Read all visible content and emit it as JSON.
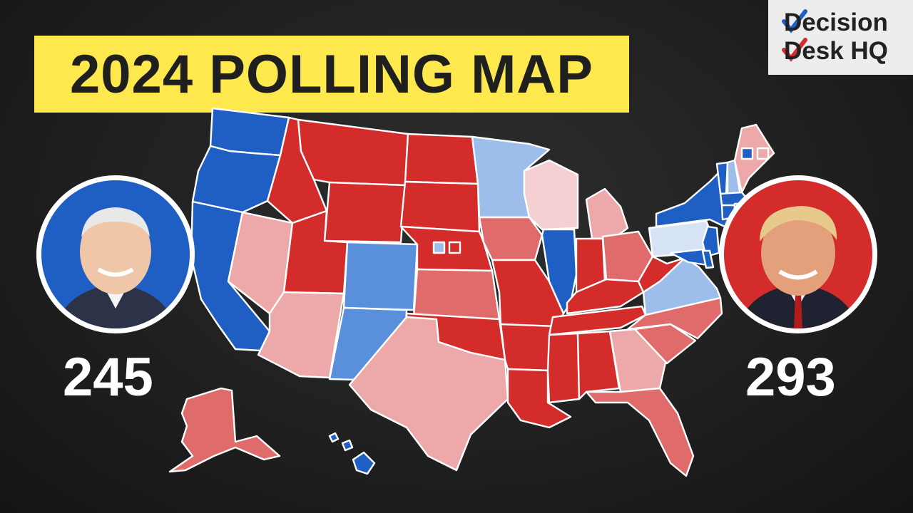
{
  "title": "2024 POLLING MAP",
  "logo": {
    "line1": "Decision",
    "line2": "Desk HQ"
  },
  "candidates": {
    "left": {
      "electoral_votes": "245",
      "photo_bg": "#1f5fc4"
    },
    "right": {
      "electoral_votes": "293",
      "photo_bg": "#d42b2b"
    }
  },
  "colors": {
    "safe_d": "#1f5fc4",
    "likely_d": "#5a8fdc",
    "lean_d": "#9dbdea",
    "tilt_d": "#d5e3f5",
    "tilt_r": "#f5d0d2",
    "lean_r": "#eda8aa",
    "likely_r": "#e06b6b",
    "safe_r": "#d42b2b"
  },
  "states": [
    {
      "id": "WA",
      "rating": "safe_d"
    },
    {
      "id": "OR",
      "rating": "safe_d"
    },
    {
      "id": "CA",
      "rating": "safe_d"
    },
    {
      "id": "NV",
      "rating": "lean_r"
    },
    {
      "id": "ID",
      "rating": "safe_r"
    },
    {
      "id": "MT",
      "rating": "safe_r"
    },
    {
      "id": "WY",
      "rating": "safe_r"
    },
    {
      "id": "UT",
      "rating": "safe_r"
    },
    {
      "id": "AZ",
      "rating": "lean_r"
    },
    {
      "id": "CO",
      "rating": "likely_d"
    },
    {
      "id": "NM",
      "rating": "likely_d"
    },
    {
      "id": "ND",
      "rating": "safe_r"
    },
    {
      "id": "SD",
      "rating": "safe_r"
    },
    {
      "id": "NE",
      "rating": "safe_r"
    },
    {
      "id": "KS",
      "rating": "likely_r"
    },
    {
      "id": "OK",
      "rating": "safe_r"
    },
    {
      "id": "TX",
      "rating": "lean_r"
    },
    {
      "id": "MN",
      "rating": "lean_d"
    },
    {
      "id": "IA",
      "rating": "likely_r"
    },
    {
      "id": "MO",
      "rating": "safe_r"
    },
    {
      "id": "AR",
      "rating": "safe_r"
    },
    {
      "id": "LA",
      "rating": "safe_r"
    },
    {
      "id": "WI",
      "rating": "tilt_r"
    },
    {
      "id": "IL",
      "rating": "safe_d"
    },
    {
      "id": "MI",
      "rating": "lean_r"
    },
    {
      "id": "IN",
      "rating": "safe_r"
    },
    {
      "id": "OH",
      "rating": "likely_r"
    },
    {
      "id": "KY",
      "rating": "safe_r"
    },
    {
      "id": "TN",
      "rating": "safe_r"
    },
    {
      "id": "MS",
      "rating": "safe_r"
    },
    {
      "id": "AL",
      "rating": "safe_r"
    },
    {
      "id": "GA",
      "rating": "lean_r"
    },
    {
      "id": "FL",
      "rating": "likely_r"
    },
    {
      "id": "SC",
      "rating": "likely_r"
    },
    {
      "id": "NC",
      "rating": "likely_r"
    },
    {
      "id": "VA",
      "rating": "lean_d"
    },
    {
      "id": "WV",
      "rating": "safe_r"
    },
    {
      "id": "PA",
      "rating": "tilt_d"
    },
    {
      "id": "NY",
      "rating": "safe_d"
    },
    {
      "id": "NJ",
      "rating": "safe_d"
    },
    {
      "id": "MD",
      "rating": "safe_d"
    },
    {
      "id": "DE",
      "rating": "safe_d"
    },
    {
      "id": "VT",
      "rating": "safe_d"
    },
    {
      "id": "NH",
      "rating": "lean_d"
    },
    {
      "id": "ME",
      "rating": "lean_r"
    },
    {
      "id": "MA",
      "rating": "safe_d"
    },
    {
      "id": "CT",
      "rating": "safe_d"
    },
    {
      "id": "RI",
      "rating": "safe_d"
    },
    {
      "id": "AK",
      "rating": "likely_r"
    },
    {
      "id": "HI",
      "rating": "safe_d"
    },
    {
      "id": "NE2",
      "rating": "lean_d"
    },
    {
      "id": "ME1",
      "rating": "safe_d"
    },
    {
      "id": "ME2",
      "rating": "lean_r"
    }
  ]
}
